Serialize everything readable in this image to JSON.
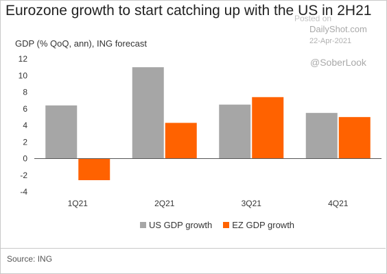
{
  "chart_data": {
    "type": "bar",
    "title": "Eurozone growth to start catching up with the US in 2H21",
    "ylabel": "GDP (% QoQ, ann), ING forecast",
    "categories": [
      "1Q21",
      "2Q21",
      "3Q21",
      "4Q21"
    ],
    "series": [
      {
        "name": "US GDP growth",
        "values": [
          6.4,
          11.0,
          6.5,
          5.5
        ],
        "color": "#a6a6a6"
      },
      {
        "name": "EZ GDP growth",
        "values": [
          -2.6,
          4.3,
          7.4,
          5.0
        ],
        "color": "#ff6200"
      }
    ],
    "ylim": [
      -4,
      12
    ],
    "yticks": [
      -4,
      -2,
      0,
      2,
      4,
      6,
      8,
      10,
      12
    ],
    "grid": false,
    "legend_position": "bottom-center"
  },
  "watermark": {
    "posted": "Posted on",
    "site": "DailyShot.com",
    "date": "22-Apr-2021",
    "handle": "@SoberLook"
  },
  "source": "Source: ING"
}
